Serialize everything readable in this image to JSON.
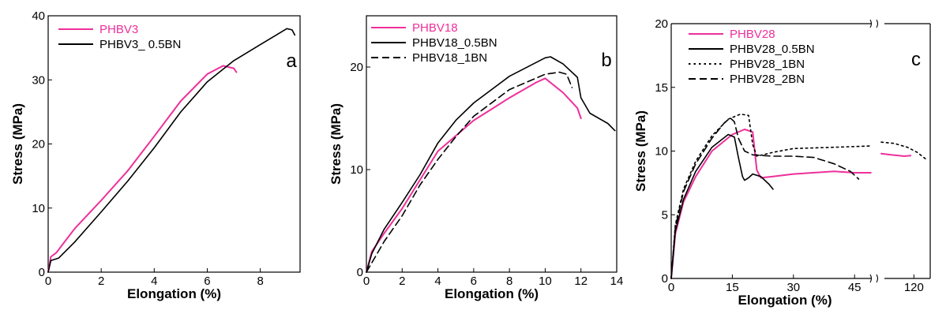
{
  "chart_data": [
    {
      "type": "line",
      "panel_label": "a",
      "xlabel": "Elongation (%)",
      "ylabel": "Stress (MPa)",
      "xlim": [
        0,
        9.5
      ],
      "ylim": [
        0,
        40
      ],
      "xticks": [
        0,
        2,
        4,
        6,
        8
      ],
      "yticks": [
        0,
        10,
        20,
        30,
        40
      ],
      "legend_position": "top-left",
      "series": [
        {
          "name": "PHBV3",
          "color": "#ee2f9a",
          "dash": "solid",
          "x": [
            0,
            0.1,
            0.3,
            1.0,
            2.0,
            3.0,
            4.0,
            5.0,
            6.0,
            6.6,
            7.0,
            7.1
          ],
          "y": [
            0,
            2.4,
            3.0,
            6.8,
            11.2,
            15.8,
            21.2,
            26.7,
            30.9,
            32.2,
            31.8,
            31.2
          ]
        },
        {
          "name": "PHBV3_ 0.5BN",
          "color": "#000000",
          "dash": "solid",
          "x": [
            0,
            0.1,
            0.4,
            1.0,
            2.0,
            3.0,
            4.0,
            5.0,
            6.0,
            7.0,
            8.0,
            8.6,
            9.0,
            9.2,
            9.3
          ],
          "y": [
            0,
            1.8,
            2.2,
            4.7,
            9.4,
            14.2,
            19.4,
            25.0,
            29.7,
            33.0,
            35.5,
            37.0,
            38.0,
            37.8,
            37.0
          ]
        }
      ]
    },
    {
      "type": "line",
      "panel_label": "b",
      "xlabel": "Elongation (%)",
      "ylabel": "Stress (MPa)",
      "xlim": [
        0,
        14
      ],
      "ylim": [
        0,
        25
      ],
      "xticks": [
        0,
        2,
        4,
        6,
        8,
        10,
        12,
        14
      ],
      "yticks": [
        0,
        10,
        20
      ],
      "legend_position": "top-left",
      "series": [
        {
          "name": "PHBV18",
          "color": "#ee2f9a",
          "dash": "solid",
          "x": [
            0,
            0.3,
            1.0,
            2.0,
            3.0,
            4.0,
            6.0,
            8.0,
            9.5,
            10.0,
            11.0,
            11.8,
            12.0
          ],
          "y": [
            0,
            2.0,
            3.8,
            6.2,
            9.0,
            11.8,
            14.8,
            17.0,
            18.5,
            18.9,
            17.5,
            16.0,
            15.0
          ]
        },
        {
          "name": "PHBV18_0.5BN",
          "color": "#000000",
          "dash": "solid",
          "x": [
            0,
            0.3,
            1.0,
            2.0,
            3.0,
            4.0,
            5.0,
            6.0,
            8.0,
            10.0,
            10.3,
            11.0,
            11.8,
            12.0,
            12.5,
            13.5,
            13.9
          ],
          "y": [
            0,
            1.8,
            4.2,
            6.8,
            9.5,
            12.6,
            14.8,
            16.5,
            19.1,
            20.9,
            21.0,
            20.3,
            19.0,
            17.0,
            15.5,
            14.5,
            13.8
          ]
        },
        {
          "name": "PHBV18_1BN",
          "color": "#000000",
          "dash": "dashed",
          "x": [
            0,
            0.5,
            1.0,
            2.0,
            3.0,
            4.0,
            5.0,
            6.0,
            8.0,
            10.0,
            10.8,
            11.2,
            11.5
          ],
          "y": [
            0,
            1.5,
            3.0,
            5.5,
            8.5,
            11.0,
            13.2,
            15.2,
            17.8,
            19.3,
            19.5,
            19.3,
            18.0
          ]
        }
      ]
    },
    {
      "type": "line",
      "panel_label": "c",
      "xlabel": "Elongation (%)",
      "ylabel": "Stress (MPa)",
      "xlim": [
        0,
        50
      ],
      "xlim_right": [
        110,
        125
      ],
      "axis_break": true,
      "ylim": [
        0,
        20
      ],
      "xticks": [
        0,
        15,
        30,
        45
      ],
      "xticks_right": [
        120
      ],
      "yticks": [
        0,
        5,
        10,
        15,
        20
      ],
      "legend_position": "top-left",
      "series": [
        {
          "name": "PHBV28",
          "color": "#ee2f9a",
          "dash": "solid",
          "x": [
            0,
            1,
            3,
            6,
            10,
            15,
            18,
            20,
            21,
            22,
            25,
            30,
            40,
            45,
            49
          ],
          "y": [
            0,
            3.5,
            6.0,
            8.0,
            10.0,
            11.3,
            11.7,
            11.5,
            8.5,
            7.9,
            8.0,
            8.2,
            8.4,
            8.3,
            8.3
          ],
          "x_right": [
            110,
            113,
            117,
            119
          ],
          "y_right": [
            9.8,
            9.7,
            9.6,
            9.65
          ]
        },
        {
          "name": "PHBV28_0.5BN",
          "color": "#000000",
          "dash": "solid",
          "x": [
            0,
            1,
            3,
            6,
            10,
            14,
            15.5,
            16.5,
            17.5,
            18,
            19,
            20,
            22,
            24,
            25
          ],
          "y": [
            0,
            3.7,
            6.2,
            8.4,
            10.3,
            11.3,
            11.1,
            9.5,
            8.0,
            7.7,
            7.9,
            8.2,
            8.0,
            7.4,
            7.0
          ]
        },
        {
          "name": "PHBV28_1BN",
          "color": "#000000",
          "dash": "dotted",
          "x": [
            0,
            1,
            3,
            6,
            10,
            14,
            17,
            19,
            20,
            21,
            25,
            30,
            40,
            49
          ],
          "y": [
            0,
            4.2,
            7.0,
            9.2,
            11.2,
            12.5,
            12.9,
            12.8,
            10.5,
            9.6,
            9.9,
            10.2,
            10.3,
            10.4
          ],
          "x_right": [
            110,
            114,
            118,
            121,
            124
          ],
          "y_right": [
            10.7,
            10.6,
            10.3,
            9.9,
            9.3
          ]
        },
        {
          "name": "PHBV28_2BN",
          "color": "#000000",
          "dash": "dashed",
          "x": [
            0,
            1,
            3,
            6,
            10,
            13,
            14.5,
            15.5,
            16.5,
            18,
            20,
            25,
            30,
            35,
            40,
            44,
            46
          ],
          "y": [
            0,
            4.0,
            6.8,
            9.0,
            11.0,
            12.2,
            12.6,
            12.3,
            11.0,
            10.0,
            9.7,
            9.6,
            9.6,
            9.5,
            9.0,
            8.4,
            7.8
          ]
        }
      ]
    }
  ]
}
